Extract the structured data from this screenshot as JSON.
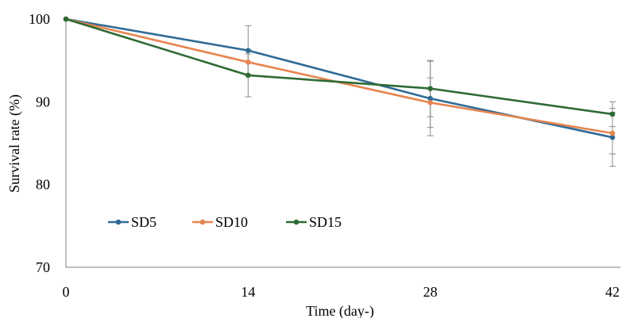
{
  "chart_data": {
    "type": "line",
    "title": "",
    "xlabel": "Time (day-)",
    "ylabel": "Survival rate (%)",
    "x": [
      0,
      14,
      28,
      42
    ],
    "x_tick_labels": [
      "0",
      "14",
      "28",
      "42"
    ],
    "ylim": [
      70,
      100
    ],
    "y_ticks": [
      70,
      80,
      90,
      100
    ],
    "y_tick_labels": [
      "70",
      "80",
      "90",
      "100"
    ],
    "grid": false,
    "legend_position": "lower-left",
    "series": [
      {
        "name": "SD5",
        "color": "#2f6b96",
        "values": [
          100,
          96.2,
          90.4,
          85.7
        ],
        "errors": [
          0,
          3.0,
          4.5,
          3.5
        ]
      },
      {
        "name": "SD10",
        "color": "#e6844f",
        "values": [
          100,
          94.8,
          89.9,
          86.2
        ],
        "errors": [
          0,
          1.5,
          3.0,
          2.5
        ]
      },
      {
        "name": "SD15",
        "color": "#2e6b34",
        "values": [
          100,
          93.2,
          91.6,
          88.5
        ],
        "errors": [
          0,
          2.6,
          3.4,
          1.5
        ]
      }
    ]
  }
}
